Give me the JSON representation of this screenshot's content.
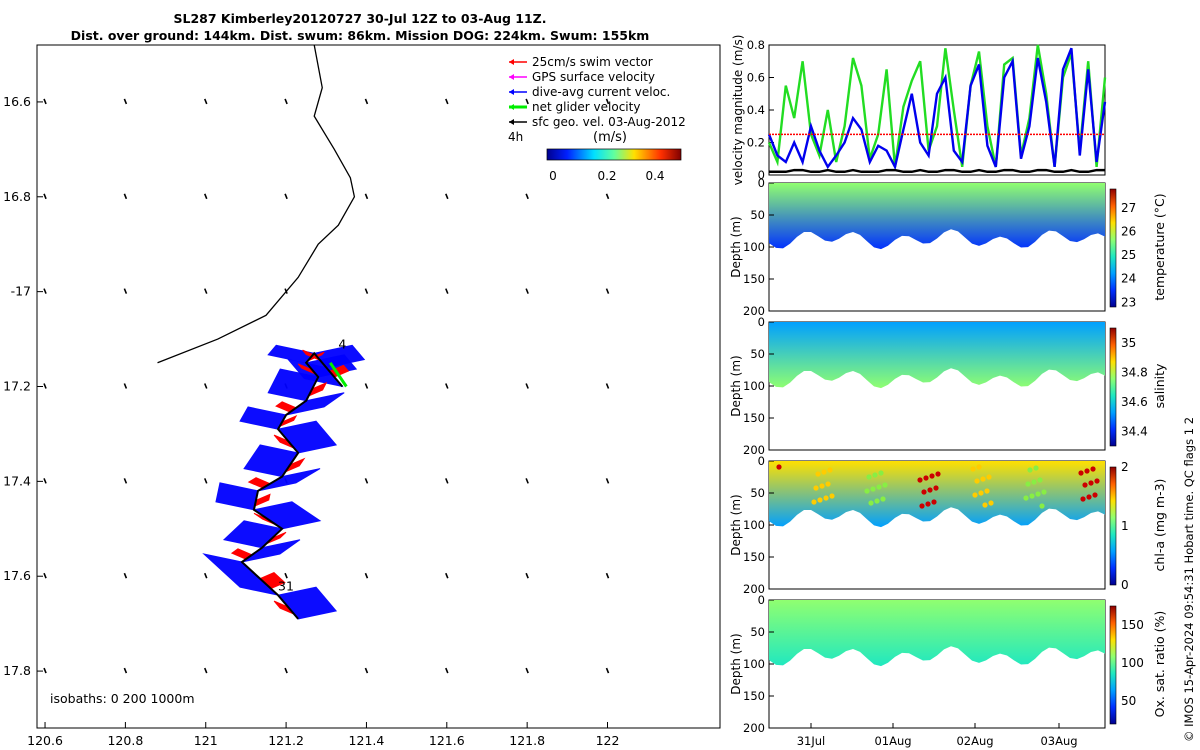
{
  "title_line1": "SL287 Kimberley20120727 30-Jul 12Z to 03-Aug 11Z.",
  "title_line2": "Dist. over ground: 144km. Dist. swum: 86km. Mission DOG: 224km. Swum: 155km",
  "credit": "© IMOS 15-Apr-2024 09:54:31 Hobart time. QC flags 1  2",
  "colors": {
    "swim": "#ff0000",
    "gps": "#ff00ff",
    "dive_avg": "#0000ff",
    "net": "#00ee00",
    "geo": "#000000"
  },
  "chart_data": [
    {
      "type": "map",
      "xlim": [
        120.58,
        122.28
      ],
      "ylim": [
        -17.92,
        -16.48
      ],
      "x_ticks": [
        120.6,
        120.8,
        121,
        121.2,
        121.4,
        121.6,
        121.8,
        122
      ],
      "x_tick_labels": [
        "120.6",
        "120.8",
        "121",
        "121.2",
        "121.4",
        "121.6",
        "121.8",
        "122"
      ],
      "y_ticks": [
        -16.6,
        -16.8,
        -17,
        -17.2,
        -17.4,
        -17.6,
        -17.8
      ],
      "y_tick_labels": [
        "16.6",
        "16.8",
        "-17",
        "17.2",
        "17.4",
        "17.6",
        "17.8"
      ],
      "legend": [
        {
          "label": "25cm/s swim vector",
          "color": "#ff0000"
        },
        {
          "label": "GPS surface velocity",
          "color": "#ff00ff"
        },
        {
          "label": "dive-avg current veloc.",
          "color": "#0000ff"
        },
        {
          "label": "net glider velocity",
          "color": "#00ee00"
        },
        {
          "label": "sfc geo. vel. 03-Aug-2012",
          "color": "#000000"
        }
      ],
      "legend_extra": "4h",
      "colorbar_label": "(m/s)",
      "colorbar_ticks": [
        "0",
        "0.2",
        "0.4"
      ],
      "annotations": [
        {
          "text": "4",
          "x": 121.33,
          "y": -17.12
        },
        {
          "text": "31",
          "x": 121.18,
          "y": -17.63
        }
      ],
      "isobaths_label": "isobaths: 0   200  1000m",
      "coastline": [
        [
          121.27,
          -16.48
        ],
        [
          121.29,
          -16.57
        ],
        [
          121.27,
          -16.63
        ],
        [
          121.32,
          -16.7
        ],
        [
          121.36,
          -16.76
        ],
        [
          121.37,
          -16.8
        ],
        [
          121.33,
          -16.86
        ],
        [
          121.28,
          -16.9
        ],
        [
          121.23,
          -16.97
        ],
        [
          121.15,
          -17.05
        ],
        [
          121.03,
          -17.1
        ],
        [
          120.88,
          -17.15
        ]
      ],
      "glider_track": [
        [
          121.23,
          -17.69
        ],
        [
          121.18,
          -17.64
        ],
        [
          121.09,
          -17.57
        ],
        [
          121.14,
          -17.54
        ],
        [
          121.19,
          -17.5
        ],
        [
          121.12,
          -17.46
        ],
        [
          121.13,
          -17.42
        ],
        [
          121.19,
          -17.39
        ],
        [
          121.23,
          -17.34
        ],
        [
          121.18,
          -17.29
        ],
        [
          121.2,
          -17.26
        ],
        [
          121.25,
          -17.23
        ],
        [
          121.28,
          -17.18
        ],
        [
          121.25,
          -17.15
        ],
        [
          121.27,
          -17.13
        ],
        [
          121.3,
          -17.16
        ],
        [
          121.34,
          -17.2
        ]
      ],
      "net_velocity_arrow": [
        [
          121.31,
          -17.15
        ],
        [
          121.35,
          -17.2
        ]
      ]
    },
    {
      "type": "line",
      "ylabel": "velocity magnitude (m/s)",
      "ylim": [
        0,
        0.8
      ],
      "y_ticks": [
        "0",
        "0.2",
        "0.4",
        "0.6",
        "0.8"
      ],
      "x_range": [
        "30-Jul 12Z",
        "03-Aug 11Z"
      ],
      "series": [
        {
          "color": "#22dd22",
          "values": [
            0.2,
            0.08,
            0.55,
            0.35,
            0.7,
            0.25,
            0.12,
            0.4,
            0.08,
            0.3,
            0.72,
            0.55,
            0.1,
            0.25,
            0.65,
            0.05,
            0.42,
            0.58,
            0.7,
            0.15,
            0.3,
            0.78,
            0.4,
            0.05,
            0.55,
            0.76,
            0.3,
            0.05,
            0.68,
            0.72,
            0.12,
            0.35,
            0.8,
            0.5,
            0.05,
            0.6,
            0.75,
            0.15,
            0.7,
            0.05,
            0.6
          ]
        },
        {
          "color": "#0000ee",
          "values": [
            0.25,
            0.12,
            0.08,
            0.2,
            0.08,
            0.3,
            0.15,
            0.05,
            0.12,
            0.2,
            0.35,
            0.28,
            0.08,
            0.18,
            0.15,
            0.05,
            0.28,
            0.5,
            0.2,
            0.12,
            0.5,
            0.6,
            0.15,
            0.08,
            0.55,
            0.68,
            0.18,
            0.05,
            0.6,
            0.7,
            0.1,
            0.3,
            0.72,
            0.45,
            0.05,
            0.65,
            0.78,
            0.12,
            0.65,
            0.08,
            0.45
          ]
        },
        {
          "color": "#ff0000",
          "values": [
            0.25,
            0.25,
            0.25,
            0.25,
            0.25,
            0.25,
            0.25,
            0.25,
            0.25,
            0.25,
            0.25,
            0.25,
            0.25,
            0.25,
            0.25,
            0.25,
            0.25,
            0.25,
            0.25,
            0.25,
            0.25,
            0.25,
            0.25,
            0.25,
            0.25,
            0.25,
            0.25,
            0.25,
            0.25,
            0.25,
            0.25,
            0.25,
            0.25,
            0.25,
            0.25,
            0.25,
            0.25,
            0.25,
            0.25,
            0.25,
            0.25
          ]
        },
        {
          "color": "#000000",
          "values": [
            0.02,
            0.02,
            0.02,
            0.03,
            0.03,
            0.02,
            0.02,
            0.03,
            0.02,
            0.02,
            0.03,
            0.02,
            0.02,
            0.02,
            0.03,
            0.03,
            0.02,
            0.02,
            0.03,
            0.02,
            0.02,
            0.03,
            0.03,
            0.02,
            0.02,
            0.03,
            0.02,
            0.02,
            0.03,
            0.03,
            0.02,
            0.02,
            0.03,
            0.03,
            0.02,
            0.02,
            0.03,
            0.02,
            0.02,
            0.03,
            0.03
          ]
        }
      ]
    },
    {
      "type": "heatmap",
      "ylabel": "Depth (m)",
      "colorbar_label": "temperature (°C)",
      "y_ticks": [
        "0",
        "50",
        "100",
        "150",
        "200"
      ],
      "colorbar_ticks": [
        "27",
        "26",
        "25",
        "24",
        "23"
      ],
      "ylim": [
        200,
        0
      ],
      "zlim": [
        22.8,
        27.8
      ],
      "surface_value": 25.6,
      "bottom_value": 23.2
    },
    {
      "type": "heatmap",
      "ylabel": "Depth (m)",
      "colorbar_label": "salinity",
      "y_ticks": [
        "0",
        "50",
        "100",
        "150",
        "200"
      ],
      "colorbar_ticks": [
        "35",
        "34.8",
        "34.6",
        "34.4"
      ],
      "ylim": [
        200,
        0
      ],
      "zlim": [
        34.3,
        35.1
      ],
      "surface_value": 34.55,
      "bottom_value": 34.78
    },
    {
      "type": "heatmap",
      "ylabel": "Depth (m)",
      "colorbar_label": "chl-a (mg m-3)",
      "y_ticks": [
        "0",
        "50",
        "100",
        "150",
        "200"
      ],
      "colorbar_ticks": [
        "2",
        "1",
        "0"
      ],
      "ylim": [
        200,
        0
      ],
      "zlim": [
        0,
        2
      ],
      "surface_value": 1.4,
      "bottom_value": 0.5
    },
    {
      "type": "heatmap",
      "ylabel": "Depth (m)",
      "colorbar_label": "Ox. sat. ratio (%)",
      "y_ticks": [
        "0",
        "50",
        "100",
        "150",
        "200"
      ],
      "colorbar_ticks": [
        "150",
        "100",
        "50"
      ],
      "ylim": [
        200,
        0
      ],
      "zlim": [
        20,
        175
      ],
      "surface_value": 100,
      "bottom_value": 95,
      "x_tick_labels": [
        "31Jul",
        "01Aug",
        "02Aug",
        "03Aug"
      ]
    }
  ]
}
